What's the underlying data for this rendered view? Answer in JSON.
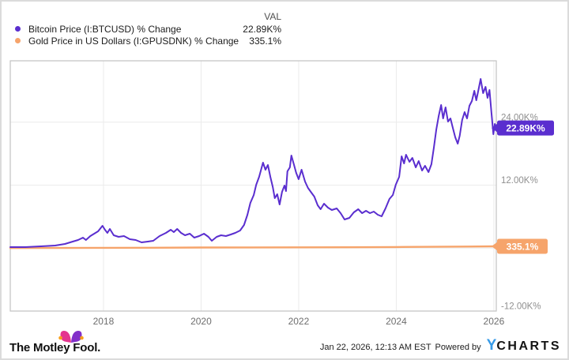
{
  "legend": {
    "val_header": "VAL",
    "items": [
      {
        "label": "Bitcoin Price (I:BTCUSD) % Change",
        "value": "22.89K%",
        "color": "#5a2ecf"
      },
      {
        "label": "Gold Price in US Dollars (I:GPUSDNK) % Change",
        "value": "335.1%",
        "color": "#f6a46b"
      }
    ]
  },
  "chart_data": {
    "type": "line",
    "title": "",
    "xlabel": "",
    "ylabel": "% Change",
    "xlim": [
      2016.09,
      2026.05
    ],
    "ylim": [
      -12000,
      35700
    ],
    "grid": true,
    "legend_position": "top-left",
    "x_ticks": [
      {
        "v": 2018,
        "label": "2018"
      },
      {
        "v": 2020,
        "label": "2020"
      },
      {
        "v": 2022,
        "label": "2022"
      },
      {
        "v": 2024,
        "label": "2024"
      },
      {
        "v": 2026,
        "label": "2026"
      }
    ],
    "y_ticks": [
      {
        "v": 24000,
        "label": "24.00K%"
      },
      {
        "v": 12000,
        "label": "12.00K%"
      },
      {
        "v": -12000,
        "label": "-12.00K%"
      }
    ],
    "y_gridlines": [
      24000,
      12000,
      0,
      -12000
    ],
    "series": [
      {
        "id": "gold",
        "name": "Gold Price in US Dollars (I:GPUSDNK) % Change",
        "color": "#f6a46b",
        "width": 2.4,
        "end_label": "335.1%",
        "points": [
          [
            2016.09,
            5
          ],
          [
            2017,
            25
          ],
          [
            2018,
            50
          ],
          [
            2019,
            75
          ],
          [
            2020,
            110
          ],
          [
            2021,
            125
          ],
          [
            2022,
            140
          ],
          [
            2023,
            160
          ],
          [
            2024,
            210
          ],
          [
            2024.8,
            250
          ],
          [
            2025.5,
            300
          ],
          [
            2026.05,
            335.1
          ]
        ]
      },
      {
        "id": "bitcoin",
        "name": "Bitcoin Price (I:BTCUSD) % Change",
        "color": "#5a2ecf",
        "width": 2,
        "end_label": "22.89K%",
        "points": [
          [
            2016.09,
            190
          ],
          [
            2016.4,
            190
          ],
          [
            2016.72,
            340
          ],
          [
            2017.01,
            490
          ],
          [
            2017.21,
            790
          ],
          [
            2017.37,
            1240
          ],
          [
            2017.48,
            1540
          ],
          [
            2017.58,
            1990
          ],
          [
            2017.64,
            1540
          ],
          [
            2017.73,
            2300
          ],
          [
            2017.81,
            2750
          ],
          [
            2017.89,
            3200
          ],
          [
            2017.98,
            4250
          ],
          [
            2018.03,
            3500
          ],
          [
            2018.08,
            2900
          ],
          [
            2018.13,
            3650
          ],
          [
            2018.21,
            2450
          ],
          [
            2018.31,
            2140
          ],
          [
            2018.42,
            2300
          ],
          [
            2018.54,
            1690
          ],
          [
            2018.66,
            1540
          ],
          [
            2018.78,
            1090
          ],
          [
            2018.91,
            1240
          ],
          [
            2019.02,
            1390
          ],
          [
            2019.15,
            2300
          ],
          [
            2019.28,
            2900
          ],
          [
            2019.38,
            3500
          ],
          [
            2019.44,
            3050
          ],
          [
            2019.51,
            3650
          ],
          [
            2019.59,
            2900
          ],
          [
            2019.67,
            2450
          ],
          [
            2019.77,
            2750
          ],
          [
            2019.86,
            1990
          ],
          [
            2019.96,
            2300
          ],
          [
            2020.06,
            2750
          ],
          [
            2020.15,
            2140
          ],
          [
            2020.22,
            1390
          ],
          [
            2020.32,
            2140
          ],
          [
            2020.41,
            2450
          ],
          [
            2020.51,
            2300
          ],
          [
            2020.61,
            2600
          ],
          [
            2020.7,
            2900
          ],
          [
            2020.8,
            3350
          ],
          [
            2020.88,
            4400
          ],
          [
            2020.95,
            6360
          ],
          [
            2021.01,
            8620
          ],
          [
            2021.08,
            10120
          ],
          [
            2021.13,
            12080
          ],
          [
            2021.19,
            13580
          ],
          [
            2021.22,
            14630
          ],
          [
            2021.27,
            16290
          ],
          [
            2021.32,
            14940
          ],
          [
            2021.37,
            15840
          ],
          [
            2021.42,
            13580
          ],
          [
            2021.47,
            11620
          ],
          [
            2021.51,
            9520
          ],
          [
            2021.56,
            10270
          ],
          [
            2021.61,
            8310
          ],
          [
            2021.66,
            10720
          ],
          [
            2021.71,
            11930
          ],
          [
            2021.74,
            10870
          ],
          [
            2021.77,
            14630
          ],
          [
            2021.82,
            15390
          ],
          [
            2021.85,
            17640
          ],
          [
            2021.9,
            15990
          ],
          [
            2021.95,
            14330
          ],
          [
            2022.0,
            13130
          ],
          [
            2022.06,
            14940
          ],
          [
            2022.13,
            12680
          ],
          [
            2022.19,
            11470
          ],
          [
            2022.26,
            10570
          ],
          [
            2022.32,
            9820
          ],
          [
            2022.39,
            8160
          ],
          [
            2022.45,
            7410
          ],
          [
            2022.52,
            8460
          ],
          [
            2022.6,
            7710
          ],
          [
            2022.68,
            7260
          ],
          [
            2022.78,
            7560
          ],
          [
            2022.86,
            6660
          ],
          [
            2022.94,
            5460
          ],
          [
            2023.04,
            5760
          ],
          [
            2023.13,
            6810
          ],
          [
            2023.22,
            7410
          ],
          [
            2023.3,
            6660
          ],
          [
            2023.38,
            7110
          ],
          [
            2023.46,
            6660
          ],
          [
            2023.54,
            6960
          ],
          [
            2023.62,
            6360
          ],
          [
            2023.7,
            6060
          ],
          [
            2023.78,
            7560
          ],
          [
            2023.86,
            9370
          ],
          [
            2023.93,
            10120
          ],
          [
            2023.99,
            12080
          ],
          [
            2024.06,
            13580
          ],
          [
            2024.11,
            17490
          ],
          [
            2024.16,
            16140
          ],
          [
            2024.2,
            17790
          ],
          [
            2024.27,
            16440
          ],
          [
            2024.33,
            17190
          ],
          [
            2024.4,
            15390
          ],
          [
            2024.46,
            16590
          ],
          [
            2024.53,
            14780
          ],
          [
            2024.59,
            15690
          ],
          [
            2024.66,
            14480
          ],
          [
            2024.72,
            15990
          ],
          [
            2024.77,
            19150
          ],
          [
            2024.82,
            22610
          ],
          [
            2024.87,
            25170
          ],
          [
            2024.92,
            27270
          ],
          [
            2024.96,
            24720
          ],
          [
            2025.01,
            26820
          ],
          [
            2025.06,
            24110
          ],
          [
            2025.11,
            24720
          ],
          [
            2025.16,
            22910
          ],
          [
            2025.21,
            21100
          ],
          [
            2025.26,
            19900
          ],
          [
            2025.3,
            21410
          ],
          [
            2025.35,
            24410
          ],
          [
            2025.4,
            25920
          ],
          [
            2025.45,
            24720
          ],
          [
            2025.5,
            27120
          ],
          [
            2025.55,
            28030
          ],
          [
            2025.6,
            29980
          ],
          [
            2025.64,
            28180
          ],
          [
            2025.69,
            30430
          ],
          [
            2025.73,
            32240
          ],
          [
            2025.78,
            29530
          ],
          [
            2025.83,
            30730
          ],
          [
            2025.87,
            28630
          ],
          [
            2025.91,
            30130
          ],
          [
            2025.95,
            25920
          ],
          [
            2025.99,
            21710
          ],
          [
            2026.02,
            23660
          ],
          [
            2026.05,
            22890
          ]
        ]
      }
    ]
  },
  "footer": {
    "logo_text": "The Motley Fool.",
    "timestamp": "Jan 22, 2026, 12:13 AM EST",
    "powered_by": "Powered by",
    "ycharts_y": "Y",
    "ycharts_rest": "CHARTS"
  },
  "colors": {
    "bitcoin": "#5a2ecf",
    "gold": "#f6a46b",
    "gridline": "#ebebeb",
    "plot_border": "#c2c2c2",
    "y_tick_text": "#8f8f8f",
    "x_tick_text": "#6e6e6e",
    "ycharts_blue": "#379be8"
  }
}
